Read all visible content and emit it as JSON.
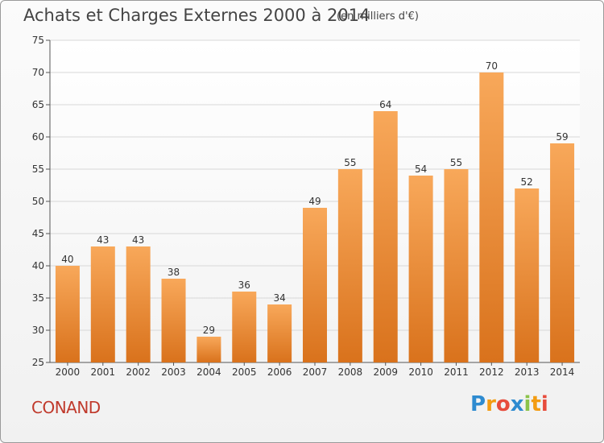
{
  "header": {
    "title": "Achats et Charges Externes 2000 à 2014",
    "subtitle": "(en milliers d'€)"
  },
  "footer": {
    "commune": "CONAND",
    "logo_letters": [
      "P",
      "r",
      "o",
      "x",
      "i",
      "t",
      "i"
    ],
    "logo_colors": [
      "#2e8bd0",
      "#f39c12",
      "#e74c3c",
      "#2e8bd0",
      "#8bc34a",
      "#f39c12",
      "#e74c3c"
    ]
  },
  "colors": {
    "bar_top": "#f8a85a",
    "bar_bottom": "#d9721c",
    "grid": "#d8d8d8",
    "axis": "#555555"
  },
  "chart_data": {
    "type": "bar",
    "title": "Achats et Charges Externes 2000 à 2014",
    "subtitle": "(en milliers d'€)",
    "categories": [
      "2000",
      "2001",
      "2002",
      "2003",
      "2004",
      "2005",
      "2006",
      "2007",
      "2008",
      "2009",
      "2010",
      "2011",
      "2012",
      "2013",
      "2014"
    ],
    "values": [
      40,
      43,
      43,
      38,
      29,
      36,
      34,
      49,
      55,
      64,
      54,
      55,
      70,
      52,
      59
    ],
    "ylim": [
      25,
      75
    ],
    "yticks": [
      25,
      30,
      35,
      40,
      45,
      50,
      55,
      60,
      65,
      70,
      75
    ],
    "grid": true,
    "xlabel": "",
    "ylabel": ""
  }
}
